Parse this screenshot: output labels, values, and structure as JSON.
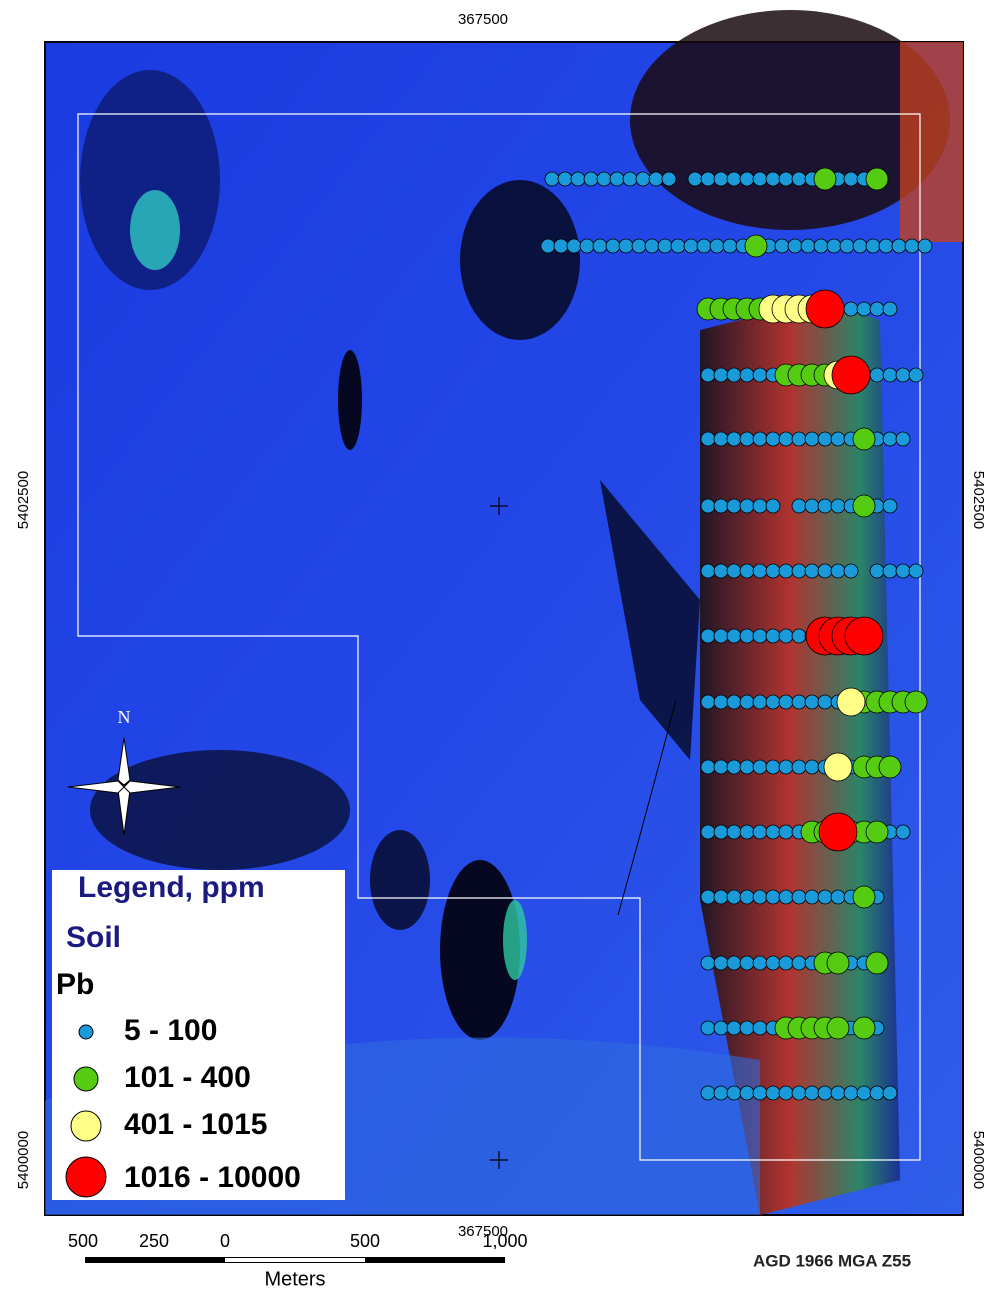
{
  "map": {
    "top_coordinate": "367500",
    "bottom_coordinate": "367500",
    "left_coordinates": [
      "5402500",
      "5400000"
    ],
    "right_coordinates": [
      "5402500",
      "5400000"
    ],
    "north": "N",
    "legend": {
      "title": "Legend, ppm",
      "subtitle": "Soil",
      "element": "Pb",
      "classes": [
        "5 - 100",
        "101 - 400",
        "401 - 1015",
        "1016 - 10000"
      ]
    },
    "scale": {
      "labels": [
        "500",
        "250",
        "0",
        "500",
        "1,000"
      ],
      "unit": "Meters"
    },
    "projection": "AGD 1966 MGA Z55"
  }
}
